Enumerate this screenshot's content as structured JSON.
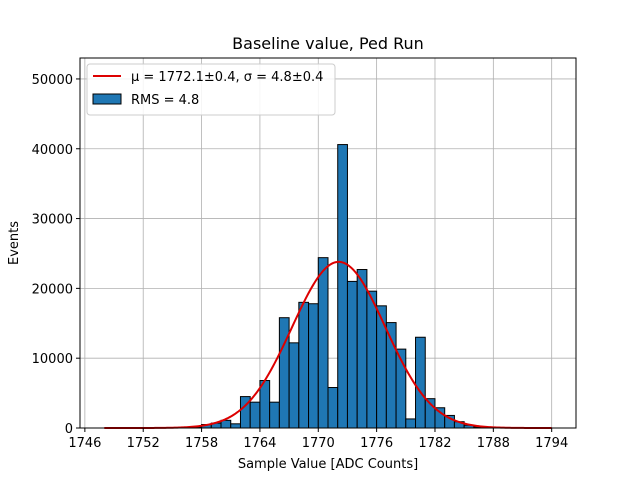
{
  "chart_data": {
    "type": "bar",
    "title": "Baseline value, Ped Run",
    "xlabel": "Sample Value [ADC Counts]",
    "ylabel": "Events",
    "xlim": [
      1745.5,
      1796.5
    ],
    "ylim": [
      0,
      53000
    ],
    "xticks": [
      1746,
      1752,
      1758,
      1764,
      1770,
      1776,
      1782,
      1788,
      1794
    ],
    "yticks": [
      0,
      10000,
      20000,
      30000,
      40000,
      50000
    ],
    "grid": true,
    "legend_position": "upper-left",
    "bar_color": "#1f77b4",
    "fit_color": "#dd0000",
    "series": [
      {
        "name": "RMS = 4.8",
        "kind": "histogram",
        "bin_width": 1,
        "bin_starts": [
          1757,
          1758,
          1759,
          1760,
          1761,
          1762,
          1763,
          1764,
          1765,
          1766,
          1767,
          1768,
          1769,
          1770,
          1771,
          1772,
          1773,
          1774,
          1775,
          1776,
          1777,
          1778,
          1779,
          1780,
          1781,
          1782,
          1783,
          1784,
          1785,
          1786
        ],
        "values": [
          150,
          500,
          700,
          1100,
          600,
          4500,
          3700,
          6800,
          3700,
          15800,
          12200,
          18000,
          17800,
          24400,
          5800,
          40600,
          21000,
          22700,
          19600,
          17500,
          15100,
          11300,
          1300,
          13000,
          4200,
          2900,
          1800,
          900,
          400,
          150
        ]
      },
      {
        "name": "μ = 1772.1±0.4, σ = 4.8±0.4",
        "kind": "gaussian_fit",
        "mu": 1772.1,
        "sigma": 4.8,
        "amplitude": 23800,
        "x_range": [
          1748,
          1794
        ]
      }
    ],
    "legend": {
      "fit_label": "μ = 1772.1±0.4, σ = 4.8±0.4",
      "hist_label": "RMS = 4.8"
    }
  }
}
